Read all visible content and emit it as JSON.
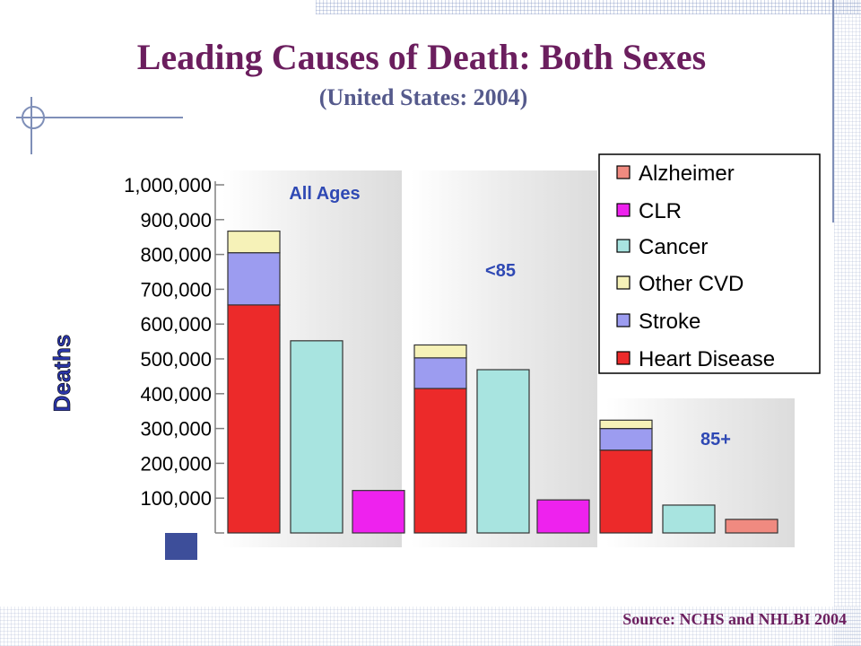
{
  "slide": {
    "title": "Leading Causes of Death: Both Sexes",
    "subtitle": "(United States: 2004)",
    "source": "Source: NCHS and NHLBI 2004",
    "colors": {
      "title": "#6b1e5e",
      "subtitle": "#555a8c",
      "panel_label": "#2f49b4"
    }
  },
  "chart_data": {
    "type": "bar",
    "stacked": true,
    "ylabel": "Deaths",
    "ylim": [
      0,
      1000000
    ],
    "yticks": [
      100000,
      200000,
      300000,
      400000,
      500000,
      600000,
      700000,
      800000,
      900000,
      1000000
    ],
    "ytick_labels": [
      "100,000",
      "200,000",
      "300,000",
      "400,000",
      "500,000",
      "600,000",
      "700,000",
      "800,000",
      "900,000",
      "1,000,000"
    ],
    "legend": {
      "placement": "top-right",
      "entries": [
        {
          "label": "Alzheimer",
          "color": "#f08a80"
        },
        {
          "label": "CLR",
          "color": "#ee22ee"
        },
        {
          "label": "Cancer",
          "color": "#a8e4e0"
        },
        {
          "label": "Other CVD",
          "color": "#f6f2b8"
        },
        {
          "label": "Stroke",
          "color": "#9c9cf0"
        },
        {
          "label": "Heart Disease",
          "color": "#ec2a2a"
        }
      ]
    },
    "groups": [
      {
        "label": "All Ages",
        "bars": [
          {
            "segments": [
              {
                "series": "Heart Disease",
                "value": 655000
              },
              {
                "series": "Stroke",
                "value": 150000
              },
              {
                "series": "Other CVD",
                "value": 62000
              }
            ]
          },
          {
            "segments": [
              {
                "series": "Cancer",
                "value": 552000
              }
            ]
          },
          {
            "segments": [
              {
                "series": "CLR",
                "value": 122000
              }
            ]
          }
        ]
      },
      {
        "label": "<85",
        "bars": [
          {
            "segments": [
              {
                "series": "Heart Disease",
                "value": 415000
              },
              {
                "series": "Stroke",
                "value": 88000
              },
              {
                "series": "Other CVD",
                "value": 37000
              }
            ]
          },
          {
            "segments": [
              {
                "series": "Cancer",
                "value": 469000
              }
            ]
          },
          {
            "segments": [
              {
                "series": "CLR",
                "value": 95000
              }
            ]
          }
        ]
      },
      {
        "label": "85+",
        "bars": [
          {
            "segments": [
              {
                "series": "Heart Disease",
                "value": 238000
              },
              {
                "series": "Stroke",
                "value": 62000
              },
              {
                "series": "Other CVD",
                "value": 24000
              }
            ]
          },
          {
            "segments": [
              {
                "series": "Cancer",
                "value": 80000
              }
            ]
          },
          {
            "segments": [
              {
                "series": "Alzheimer",
                "value": 39000
              }
            ]
          }
        ]
      }
    ]
  }
}
